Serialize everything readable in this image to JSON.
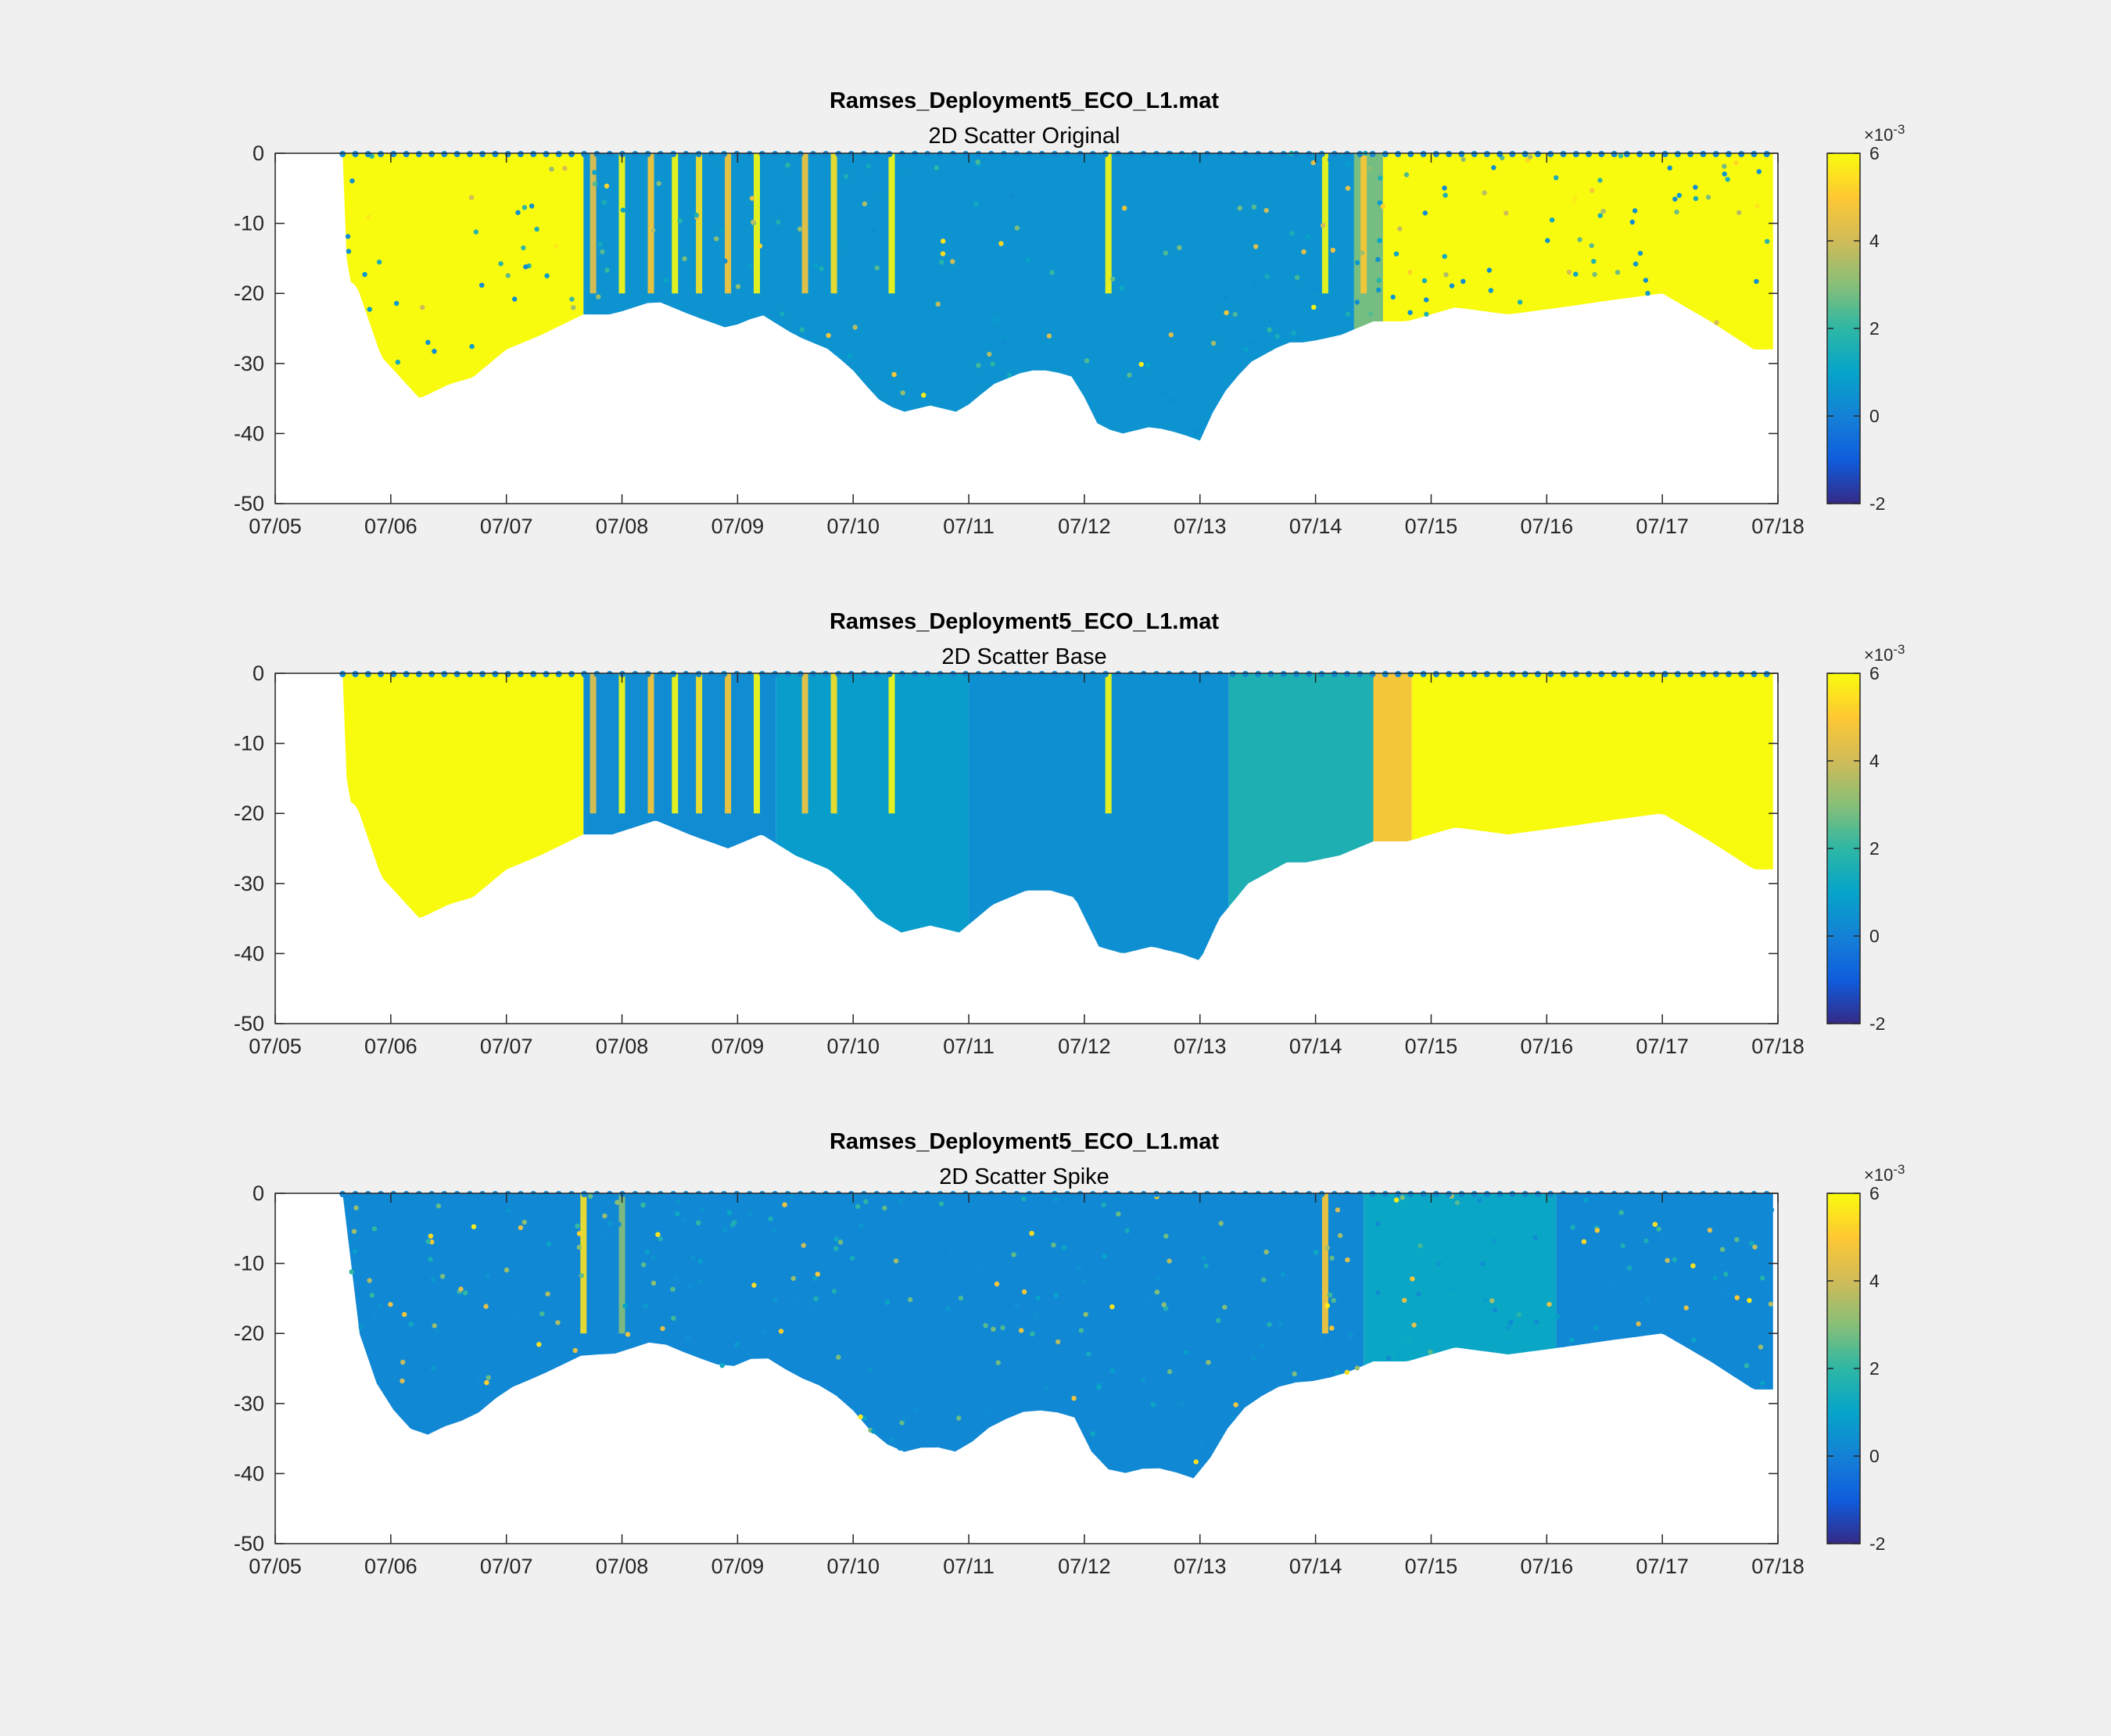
{
  "figure": {
    "background": "#f0f0f0"
  },
  "colormap": {
    "name": "parula",
    "stops": [
      "#352a87",
      "#0f5cdd",
      "#1481d6",
      "#06a4ca",
      "#2eb7a4",
      "#87bf77",
      "#d1bb59",
      "#fec832",
      "#f9fb0e"
    ]
  },
  "chart_data": [
    {
      "type": "scatter",
      "title": "Ramses_Deployment5_ECO_L1.mat",
      "subtitle": "2D Scatter Original",
      "xlabel": "",
      "ylabel": "",
      "xlim": [
        "07/05",
        "07/18"
      ],
      "ylim": [
        -50,
        0
      ],
      "x_ticks": [
        "07/05",
        "07/06",
        "07/07",
        "07/08",
        "07/09",
        "07/10",
        "07/11",
        "07/12",
        "07/13",
        "07/14",
        "07/15",
        "07/16",
        "07/17",
        "07/18"
      ],
      "y_ticks": [
        "0",
        "-10",
        "-20",
        "-30",
        "-40",
        "-50"
      ],
      "colorbar": {
        "clim": [
          -0.002,
          0.006
        ],
        "ticks": [
          "6",
          "4",
          "2",
          "0",
          "-2"
        ],
        "multiplier": "×10",
        "exponent": "-3"
      },
      "grid": false,
      "depth_profile": {
        "time": [
          "07/05 14:00",
          "07/05 15:00",
          "07/05 17:00",
          "07/05 22:00",
          "07/06 06:00",
          "07/06 12:00",
          "07/06 17:00",
          "07/07 00:00",
          "07/07 07:00",
          "07/07 16:00",
          "07/07 22:00",
          "07/08 07:00",
          "07/08 14:00",
          "07/08 22:00",
          "07/09 05:00",
          "07/09 12:00",
          "07/09 19:00",
          "07/10 00:00",
          "07/10 05:00",
          "07/10 10:00",
          "07/10 16:00",
          "07/10 22:00",
          "07/11 05:00",
          "07/11 12:00",
          "07/11 17:00",
          "07/11 22:00",
          "07/12 03:00",
          "07/12 08:00",
          "07/12 14:00",
          "07/12 20:00",
          "07/13 00:00",
          "07/13 04:00",
          "07/13 10:00",
          "07/13 18:00",
          "07/13 22:00",
          "07/14 05:00",
          "07/14 12:00",
          "07/14 19:00",
          "07/15 05:00",
          "07/15 16:00",
          "07/16 03:00",
          "07/16 13:00",
          "07/17 00:00",
          "07/17 10:00",
          "07/17 19:00",
          "07/18 00:00"
        ],
        "depth": [
          0,
          -18,
          -19,
          -29,
          -35,
          -33,
          -32,
          -28,
          -26,
          -23,
          -23,
          -21,
          -23,
          -25,
          -23,
          -26,
          -28,
          -31,
          -35,
          -37,
          -36,
          -37,
          -33,
          -31,
          -31,
          -32,
          -39,
          -40,
          -39,
          -40,
          -41,
          -35,
          -30,
          -27,
          -27,
          -26,
          -24,
          -24,
          -22,
          -23,
          -22,
          -21,
          -20,
          -24,
          -28,
          -28
        ]
      },
      "data_start": "07/05 14:00",
      "data_end": "07/17 23:00",
      "color_segments": [
        {
          "start": "07/05 14:00",
          "end": "07/07 16:00",
          "value": 0.0062
        },
        {
          "start": "07/07 16:00",
          "end": "07/14 08:00",
          "value": 0.0005
        },
        {
          "start": "07/14 08:00",
          "end": "07/14 14:00",
          "value": 0.0028
        },
        {
          "start": "07/14 14:00",
          "end": "07/17 23:00",
          "value": 0.0062
        }
      ],
      "bands": [
        {
          "time": "07/07 18:00",
          "value": 0.0045
        },
        {
          "time": "07/08 00:00",
          "value": 0.006
        },
        {
          "time": "07/08 06:00",
          "value": 0.005
        },
        {
          "time": "07/08 11:00",
          "value": 0.006
        },
        {
          "time": "07/08 16:00",
          "value": 0.0055
        },
        {
          "time": "07/08 22:00",
          "value": 0.005
        },
        {
          "time": "07/09 04:00",
          "value": 0.006
        },
        {
          "time": "07/09 14:00",
          "value": 0.0048
        },
        {
          "time": "07/09 20:00",
          "value": 0.0055
        },
        {
          "time": "07/10 08:00",
          "value": 0.006
        },
        {
          "time": "07/12 05:00",
          "value": 0.006
        },
        {
          "time": "07/14 02:00",
          "value": 0.006
        },
        {
          "time": "07/14 10:00",
          "value": 0.005
        }
      ],
      "noise_fraction": 0.04
    },
    {
      "type": "scatter",
      "title": "Ramses_Deployment5_ECO_L1.mat",
      "subtitle": "2D Scatter Base",
      "xlabel": "",
      "ylabel": "",
      "xlim": [
        "07/05",
        "07/18"
      ],
      "ylim": [
        -50,
        0
      ],
      "x_ticks": [
        "07/05",
        "07/06",
        "07/07",
        "07/08",
        "07/09",
        "07/10",
        "07/11",
        "07/12",
        "07/13",
        "07/14",
        "07/15",
        "07/16",
        "07/17",
        "07/18"
      ],
      "y_ticks": [
        "0",
        "-10",
        "-20",
        "-30",
        "-40",
        "-50"
      ],
      "colorbar": {
        "clim": [
          -0.002,
          0.006
        ],
        "ticks": [
          "6",
          "4",
          "2",
          "0",
          "-2"
        ],
        "multiplier": "×10",
        "exponent": "-3"
      },
      "grid": false,
      "depth_profile": {
        "time": [
          "07/05 14:00",
          "07/05 15:00",
          "07/05 17:00",
          "07/05 22:00",
          "07/06 06:00",
          "07/06 12:00",
          "07/06 17:00",
          "07/07 00:00",
          "07/07 07:00",
          "07/07 16:00",
          "07/07 22:00",
          "07/08 07:00",
          "07/08 14:00",
          "07/08 22:00",
          "07/09 05:00",
          "07/09 12:00",
          "07/09 19:00",
          "07/10 00:00",
          "07/10 05:00",
          "07/10 10:00",
          "07/10 16:00",
          "07/10 22:00",
          "07/11 05:00",
          "07/11 12:00",
          "07/11 17:00",
          "07/11 22:00",
          "07/12 03:00",
          "07/12 08:00",
          "07/12 14:00",
          "07/12 20:00",
          "07/13 00:00",
          "07/13 04:00",
          "07/13 10:00",
          "07/13 18:00",
          "07/13 22:00",
          "07/14 05:00",
          "07/14 12:00",
          "07/14 19:00",
          "07/15 05:00",
          "07/15 16:00",
          "07/16 03:00",
          "07/16 13:00",
          "07/17 00:00",
          "07/17 10:00",
          "07/17 19:00",
          "07/18 00:00"
        ],
        "depth": [
          0,
          -18,
          -19,
          -29,
          -35,
          -33,
          -32,
          -28,
          -26,
          -23,
          -23,
          -21,
          -23,
          -25,
          -23,
          -26,
          -28,
          -31,
          -35,
          -37,
          -36,
          -37,
          -33,
          -31,
          -31,
          -32,
          -39,
          -40,
          -39,
          -40,
          -41,
          -35,
          -30,
          -27,
          -27,
          -26,
          -24,
          -24,
          -22,
          -23,
          -22,
          -21,
          -20,
          -24,
          -28,
          -28
        ]
      },
      "data_start": "07/05 14:00",
      "data_end": "07/17 23:00",
      "color_segments": [
        {
          "start": "07/05 14:00",
          "end": "07/07 16:00",
          "value": 0.0062
        },
        {
          "start": "07/07 16:00",
          "end": "07/09 08:00",
          "value": 0.0003
        },
        {
          "start": "07/09 08:00",
          "end": "07/11 00:00",
          "value": 0.0008
        },
        {
          "start": "07/11 00:00",
          "end": "07/13 06:00",
          "value": 0.0004
        },
        {
          "start": "07/13 06:00",
          "end": "07/14 12:00",
          "value": 0.0016
        },
        {
          "start": "07/14 12:00",
          "end": "07/14 20:00",
          "value": 0.0048
        },
        {
          "start": "07/14 20:00",
          "end": "07/17 23:00",
          "value": 0.0062
        }
      ],
      "bands": [
        {
          "time": "07/07 18:00",
          "value": 0.0045
        },
        {
          "time": "07/08 00:00",
          "value": 0.006
        },
        {
          "time": "07/08 06:00",
          "value": 0.005
        },
        {
          "time": "07/08 11:00",
          "value": 0.006
        },
        {
          "time": "07/08 16:00",
          "value": 0.0055
        },
        {
          "time": "07/08 22:00",
          "value": 0.005
        },
        {
          "time": "07/09 04:00",
          "value": 0.006
        },
        {
          "time": "07/09 14:00",
          "value": 0.0048
        },
        {
          "time": "07/09 20:00",
          "value": 0.0055
        },
        {
          "time": "07/10 08:00",
          "value": 0.006
        },
        {
          "time": "07/12 05:00",
          "value": 0.006
        }
      ],
      "noise_fraction": 0.0
    },
    {
      "type": "scatter",
      "title": "Ramses_Deployment5_ECO_L1.mat",
      "subtitle": "2D Scatter Spike",
      "xlabel": "",
      "ylabel": "",
      "xlim": [
        "07/05",
        "07/18"
      ],
      "ylim": [
        -50,
        0
      ],
      "x_ticks": [
        "07/05",
        "07/06",
        "07/07",
        "07/08",
        "07/09",
        "07/10",
        "07/11",
        "07/12",
        "07/13",
        "07/14",
        "07/15",
        "07/16",
        "07/17",
        "07/18"
      ],
      "y_ticks": [
        "0",
        "-10",
        "-20",
        "-30",
        "-40",
        "-50"
      ],
      "colorbar": {
        "clim": [
          -0.002,
          0.006
        ],
        "ticks": [
          "6",
          "4",
          "2",
          "0",
          "-2"
        ],
        "multiplier": "×10",
        "exponent": "-3"
      },
      "grid": false,
      "depth_profile": {
        "time": [
          "07/05 14:00",
          "07/05 15:00",
          "07/05 17:00",
          "07/05 22:00",
          "07/06 06:00",
          "07/06 12:00",
          "07/06 17:00",
          "07/07 00:00",
          "07/07 07:00",
          "07/07 16:00",
          "07/07 22:00",
          "07/08 07:00",
          "07/08 14:00",
          "07/08 22:00",
          "07/09 05:00",
          "07/09 12:00",
          "07/09 19:00",
          "07/10 00:00",
          "07/10 05:00",
          "07/10 10:00",
          "07/10 16:00",
          "07/10 22:00",
          "07/11 05:00",
          "07/11 12:00",
          "07/11 17:00",
          "07/11 22:00",
          "07/12 03:00",
          "07/12 08:00",
          "07/12 14:00",
          "07/12 20:00",
          "07/13 00:00",
          "07/13 04:00",
          "07/13 10:00",
          "07/13 18:00",
          "07/13 22:00",
          "07/14 05:00",
          "07/14 12:00",
          "07/14 19:00",
          "07/15 05:00",
          "07/15 16:00",
          "07/16 03:00",
          "07/16 13:00",
          "07/17 00:00",
          "07/17 10:00",
          "07/17 19:00",
          "07/18 00:00"
        ],
        "depth": [
          0,
          -18,
          -19,
          -29,
          -35,
          -33,
          -32,
          -28,
          -26,
          -23,
          -23,
          -21,
          -23,
          -25,
          -23,
          -26,
          -28,
          -31,
          -35,
          -37,
          -36,
          -37,
          -33,
          -31,
          -31,
          -32,
          -39,
          -40,
          -39,
          -40,
          -41,
          -35,
          -30,
          -27,
          -27,
          -26,
          -24,
          -24,
          -22,
          -23,
          -22,
          -21,
          -20,
          -24,
          -28,
          -28
        ]
      },
      "data_start": "07/05 14:00",
      "data_end": "07/17 23:00",
      "color_segments": [
        {
          "start": "07/05 14:00",
          "end": "07/14 10:00",
          "value": 0.0002
        },
        {
          "start": "07/14 10:00",
          "end": "07/16 02:00",
          "value": 0.0011
        },
        {
          "start": "07/16 02:00",
          "end": "07/17 23:00",
          "value": 0.0002
        }
      ],
      "bands": [
        {
          "time": "07/07 16:00",
          "value": 0.0055
        },
        {
          "time": "07/08 00:00",
          "value": 0.003
        },
        {
          "time": "07/14 02:00",
          "value": 0.005
        }
      ],
      "noise_fraction": 0.05
    }
  ]
}
